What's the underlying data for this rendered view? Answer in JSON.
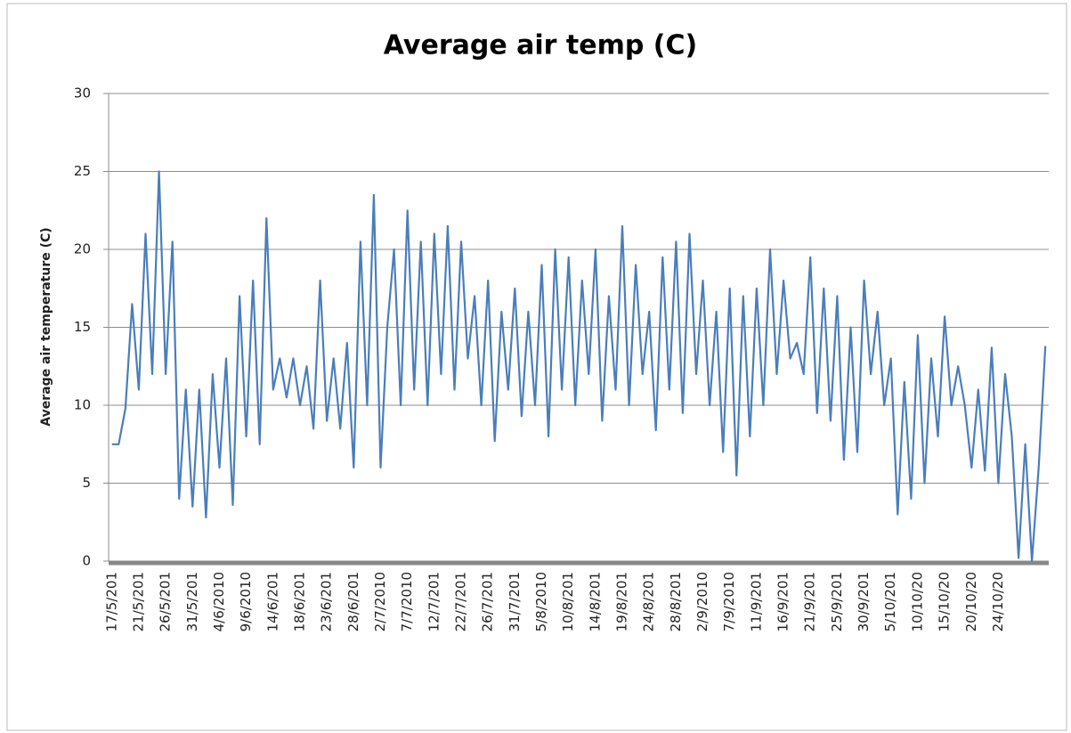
{
  "chart_data": {
    "type": "line",
    "title": "Average air temp (C)",
    "y_label": "Average air temperature (C)",
    "categories": [
      "17/5/201",
      null,
      null,
      null,
      "21/5/201",
      null,
      null,
      null,
      "26/5/201",
      null,
      null,
      null,
      "31/5/201",
      null,
      null,
      null,
      "4/6/2010",
      null,
      null,
      null,
      "9/6/2010",
      null,
      null,
      null,
      "14/6/201",
      null,
      null,
      null,
      "18/6/201",
      null,
      null,
      null,
      "23/6/201",
      null,
      null,
      null,
      "28/6/201",
      null,
      null,
      null,
      "2/7/2010",
      null,
      null,
      null,
      "7/7/2010",
      null,
      null,
      null,
      "12/7/201",
      null,
      null,
      null,
      "22/7/201",
      null,
      null,
      null,
      "26/7/201",
      null,
      null,
      null,
      "31/7/201",
      null,
      null,
      null,
      "5/8/2010",
      null,
      null,
      null,
      "10/8/201",
      null,
      null,
      null,
      "14/8/201",
      null,
      null,
      null,
      "19/8/201",
      null,
      null,
      null,
      "24/8/201",
      null,
      null,
      null,
      "28/8/201",
      null,
      null,
      null,
      "2/9/2010",
      null,
      null,
      null,
      "7/9/2010",
      null,
      null,
      null,
      "11/9/201",
      null,
      null,
      null,
      "16/9/201",
      null,
      null,
      null,
      "21/9/201",
      null,
      null,
      null,
      "25/9/201",
      null,
      null,
      null,
      "30/9/201",
      null,
      null,
      null,
      "5/10/201",
      null,
      null,
      null,
      "10/10/20",
      null,
      null,
      null,
      "15/10/20",
      null,
      null,
      null,
      "20/10/20",
      null,
      null,
      null,
      "24/10/20",
      null,
      null,
      null,
      null,
      null,
      null,
      null
    ],
    "values": [
      7.5,
      7.5,
      9.8,
      16.5,
      11,
      21,
      12,
      25,
      12,
      20.5,
      4,
      11,
      3.5,
      11,
      2.8,
      12,
      6,
      13,
      3.6,
      17,
      8,
      18,
      7.5,
      22,
      11,
      13,
      10.5,
      13,
      10,
      12.5,
      8.5,
      18,
      9,
      13,
      8.5,
      14,
      6,
      20.5,
      10,
      23.5,
      6,
      15,
      20,
      10,
      22.5,
      11,
      20.5,
      10,
      21,
      12,
      21.5,
      11,
      20.5,
      13,
      17,
      10,
      18,
      7.7,
      16,
      11,
      17.5,
      9.3,
      16,
      10,
      19,
      8,
      20,
      11,
      19.5,
      10,
      18,
      12,
      20,
      9,
      17,
      11,
      21.5,
      10,
      19,
      12,
      16,
      8.4,
      19.5,
      11,
      20.5,
      9.5,
      21,
      12,
      18,
      10,
      16,
      7,
      17.5,
      5.5,
      17,
      8,
      17.5,
      10,
      20,
      12,
      18,
      13,
      14,
      12,
      19.5,
      9.5,
      17.5,
      9,
      17,
      6.5,
      15,
      7,
      18,
      12,
      16,
      10,
      13,
      3,
      11.5,
      4,
      14.5,
      5,
      13,
      8,
      15.7,
      10,
      12.5,
      10,
      6,
      11,
      5.8,
      13.7,
      5,
      12,
      8,
      0.2,
      7.5,
      0,
      6,
      13.8
    ],
    "color": "#4a7ebb",
    "ylim": [
      0,
      30
    ],
    "yticks": [
      0,
      5,
      10,
      15,
      20,
      25,
      30
    ],
    "grid": true
  }
}
